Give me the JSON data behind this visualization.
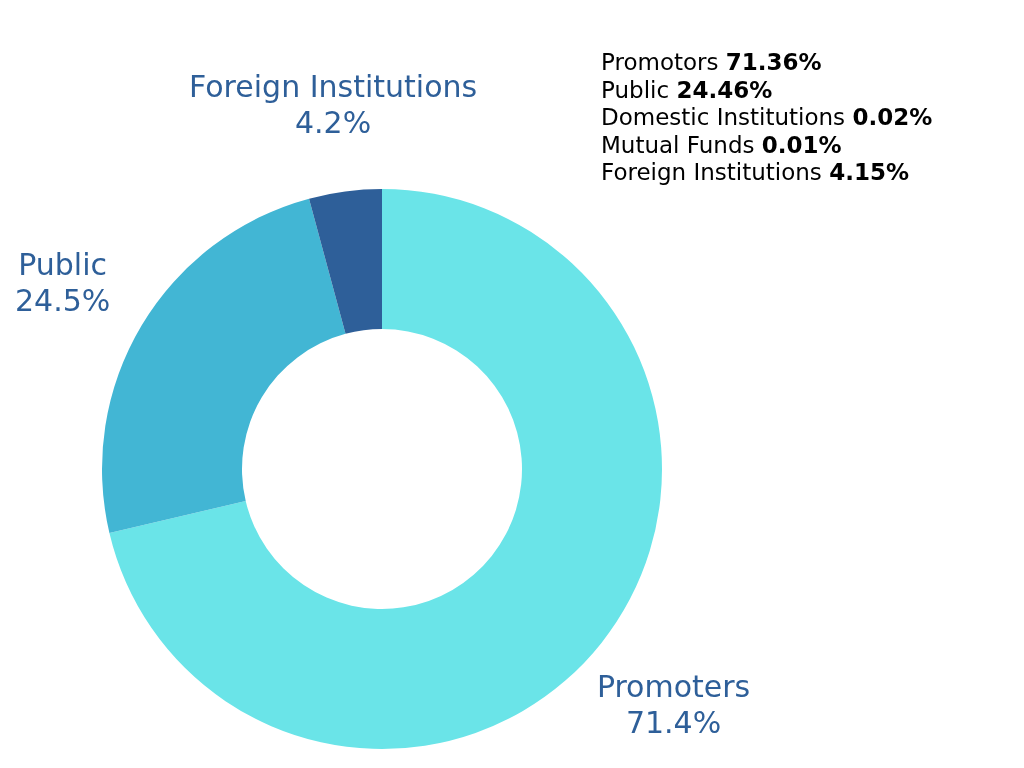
{
  "chart_data": {
    "type": "donut",
    "categories": [
      "Promoters",
      "Public",
      "Foreign Institutions"
    ],
    "values": [
      71.4,
      24.5,
      4.2
    ],
    "value_labels": [
      "71.4%",
      "24.5%",
      "4.2%"
    ],
    "colors": [
      "#6ae4e8",
      "#42b6d4",
      "#2e5f99"
    ],
    "annotations": [
      "Promotors  71.36%",
      "Public 24.46%",
      "Domestic Institutions 0.02%",
      "Mutual Funds 0.01%",
      "Foreign Institutions 4.15%"
    ]
  }
}
